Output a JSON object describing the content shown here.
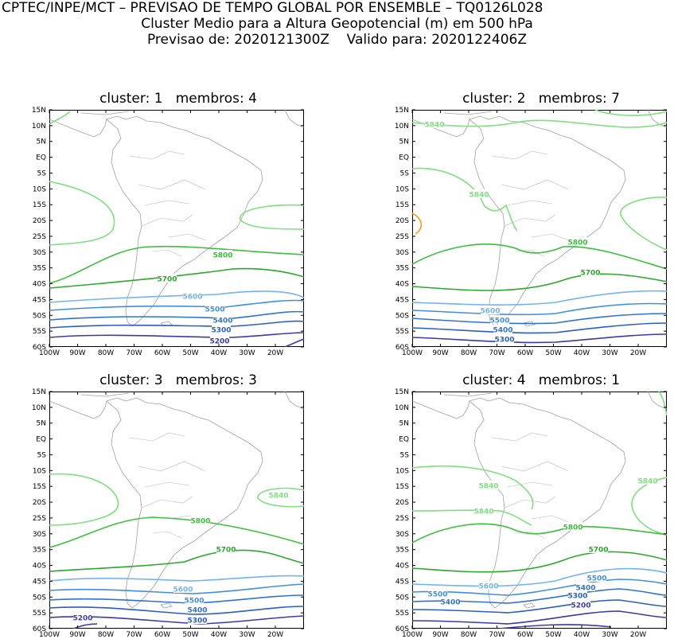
{
  "header": {
    "line1": "CPTEC/INPE/MCT – PREVISAO DE TEMPO GLOBAL POR ENSEMBLE – TQ0126L028",
    "line2": "Cluster Medio para a Altura Geopotencial (m) em 500 hPa",
    "line3": "Previsao de: 2020121300Z    Valido para: 2020122406Z"
  },
  "axes": {
    "lat_labels": [
      "15N",
      "10N",
      "5N",
      "EQ",
      "5S",
      "10S",
      "15S",
      "20S",
      "25S",
      "30S",
      "35S",
      "40S",
      "45S",
      "50S",
      "55S",
      "60S"
    ],
    "lon_labels": [
      "100W",
      "90W",
      "80W",
      "70W",
      "60W",
      "50W",
      "40W",
      "30W",
      "20W"
    ]
  },
  "colors": {
    "c5200": "#3a3aa8",
    "c5300": "#2a5fc0",
    "c5400": "#2f74d0",
    "c5500": "#3f8fe0",
    "c5600": "#72b4ee",
    "c5700": "#2aa82a",
    "c5800": "#3cc03c",
    "c5840": "#7ee07e",
    "c5880": "#ff9a1a",
    "coast": "#a0a0a0"
  },
  "panels": [
    {
      "title": "cluster: 1   membros: 4",
      "labels": [
        "5800",
        "5700",
        "5600",
        "5500",
        "5400",
        "5300",
        "5200"
      ]
    },
    {
      "title": "cluster: 2   membros: 7",
      "labels": [
        "5840",
        "5840",
        "5800",
        "5700",
        "5600",
        "5500",
        "5400",
        "5300"
      ]
    },
    {
      "title": "cluster: 3   membros: 3",
      "labels": [
        "5840",
        "5800",
        "5700",
        "5600",
        "5500",
        "5400",
        "5300",
        "5200"
      ]
    },
    {
      "title": "cluster: 4   membros: 1",
      "labels": [
        "5840",
        "5840",
        "5840",
        "5800",
        "5700",
        "5600",
        "5500",
        "5500",
        "5400",
        "5400",
        "5300",
        "5200"
      ]
    }
  ]
}
